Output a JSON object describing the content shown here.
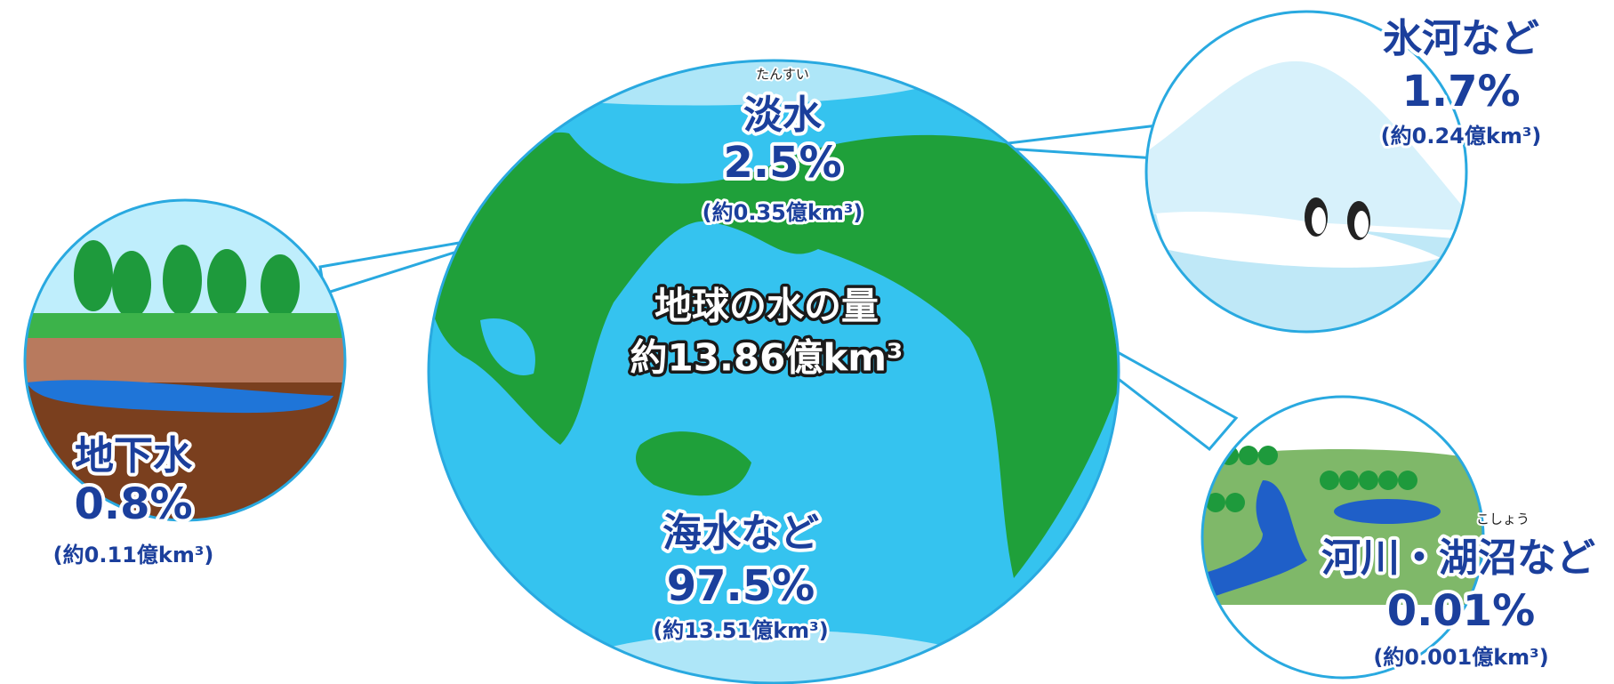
{
  "total": {
    "label": "地球の水の量",
    "volume": "約13.86億km³"
  },
  "fresh": {
    "ruby": "たんすい",
    "label": "淡水",
    "percent": "2.5%",
    "volume": "(約0.35億km³)"
  },
  "sea": {
    "label": "海水など",
    "percent": "97.5%",
    "volume": "(約13.51億km³)"
  },
  "groundwater": {
    "label": "地下水",
    "percent": "0.8%",
    "volume": "(約0.11億km³)"
  },
  "glacier": {
    "label": "氷河など",
    "percent": "1.7%",
    "volume": "(約0.24億km³)"
  },
  "rivers": {
    "ruby": "こしょう",
    "label": "河川・湖沼など",
    "percent": "0.01%",
    "volume": "(約0.001億km³)"
  }
}
